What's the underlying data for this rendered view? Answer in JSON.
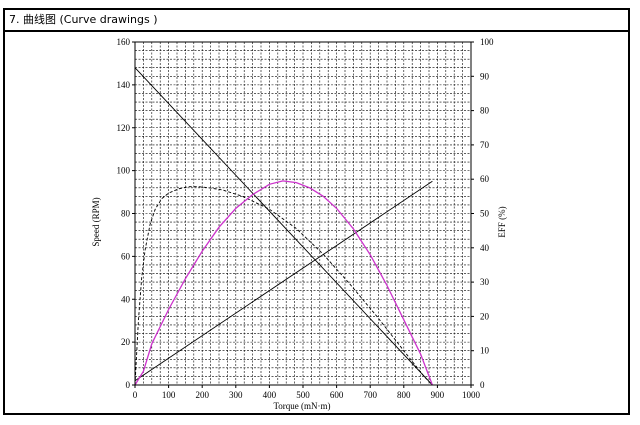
{
  "header": {
    "title": "7. 曲线图 (Curve drawings )"
  },
  "colors": {
    "grid": "#000000",
    "black_curves": "#000000",
    "efficiency": "#cc33cc",
    "background": "#ffffff"
  },
  "chart_data": {
    "type": "line",
    "title": "",
    "xlabel": "Torque (mN·m)",
    "ylabel": "Speed (RPM)",
    "y2label": "EFF (%)",
    "xlim": [
      0,
      1000
    ],
    "ylim": [
      0,
      160
    ],
    "y2lim": [
      0,
      100
    ],
    "xticks": [
      "0",
      "100",
      "200",
      "300",
      "400",
      "500",
      "600",
      "700",
      "800",
      "900",
      "1000"
    ],
    "yticks": [
      "0",
      "20",
      "40",
      "60",
      "80",
      "100",
      "120",
      "140",
      "160"
    ],
    "y2ticks": [
      "0",
      "10",
      "20",
      "30",
      "40",
      "50",
      "60",
      "70",
      "80",
      "90",
      "100"
    ],
    "grid": true,
    "legend": "none",
    "series": [
      {
        "axis": "left",
        "color": "black",
        "style": "solid",
        "x": [
          0,
          885
        ],
        "y": [
          148,
          0
        ]
      },
      {
        "axis": "left",
        "color": "black",
        "style": "solid",
        "x": [
          0,
          885
        ],
        "y": [
          2,
          95
        ]
      },
      {
        "axis": "left",
        "color": "black",
        "style": "dashed",
        "x": [
          0,
          10,
          20,
          30,
          45,
          60,
          80,
          100,
          130,
          160,
          190,
          220,
          260,
          320,
          400,
          480,
          560,
          640,
          720,
          800,
          860,
          885
        ],
        "y": [
          0,
          30,
          50,
          63,
          75,
          82,
          87,
          89.5,
          91.5,
          92.5,
          92.5,
          92,
          91,
          88,
          82,
          73,
          61,
          47,
          32,
          16,
          4,
          0
        ]
      },
      {
        "axis": "right",
        "color": "magenta",
        "style": "solid",
        "x": [
          0,
          25,
          50,
          100,
          150,
          200,
          250,
          300,
          350,
          400,
          440,
          480,
          520,
          560,
          600,
          650,
          700,
          750,
          800,
          850,
          885
        ],
        "y": [
          0,
          4,
          12,
          22,
          31,
          39,
          46,
          51.5,
          55.5,
          58.5,
          59.5,
          59,
          57.5,
          55,
          51.5,
          45.5,
          38,
          29,
          19,
          9,
          0
        ]
      }
    ]
  }
}
